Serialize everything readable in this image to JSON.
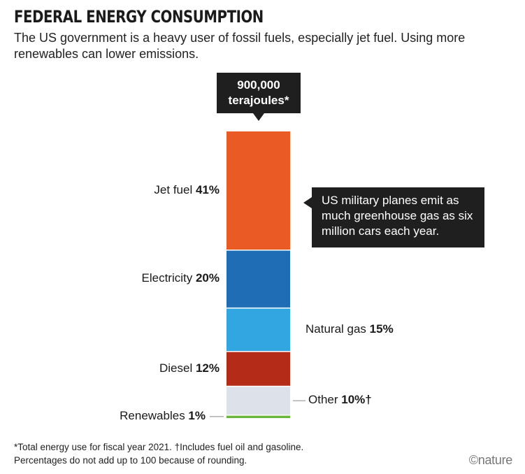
{
  "title": "FEDERAL ENERGY CONSUMPTION",
  "subtitle": "The US government is a heavy user of fossil fuels, especially jet fuel. Using more renewables can lower emissions.",
  "total_callout": {
    "line1": "900,000",
    "line2": "terajoules*"
  },
  "note_callout": "US military planes emit as much greenhouse gas as six million cars each year.",
  "footnote": {
    "line1": "*Total energy use for fiscal year 2021. †Includes fuel oil and gasoline.",
    "line2": "Percentages do not add up to 100 because of rounding."
  },
  "credit": "©nature",
  "chart_data": {
    "type": "bar",
    "stacked": true,
    "total": 900000,
    "unit": "terajoules",
    "segments": [
      {
        "label": "Jet fuel",
        "value_label": "41%",
        "value": 41,
        "color": "#e95a24",
        "side": "left"
      },
      {
        "label": "Electricity",
        "value_label": "20%",
        "value": 20,
        "color": "#1f6db5",
        "side": "left"
      },
      {
        "label": "Natural gas",
        "value_label": "15%",
        "value": 15,
        "color": "#31a6e0",
        "side": "right"
      },
      {
        "label": "Diesel",
        "value_label": "12%",
        "value": 12,
        "color": "#b42b18",
        "side": "left"
      },
      {
        "label": "Other",
        "value_label": "10%†",
        "value": 10,
        "color": "#dde2ea",
        "side": "right"
      },
      {
        "label": "Renewables",
        "value_label": "1%",
        "value": 1,
        "color": "#6ab53c",
        "side": "left"
      }
    ]
  }
}
